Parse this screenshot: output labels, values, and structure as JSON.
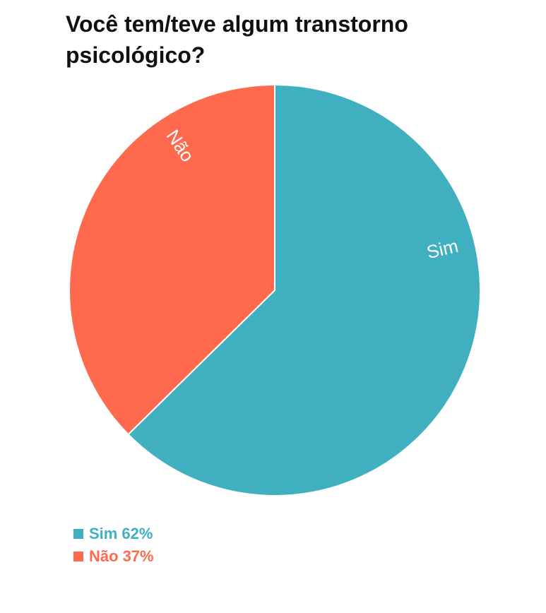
{
  "chart_data": {
    "type": "pie",
    "title": "Você tem/teve algum transtorno psicológico?",
    "slices": [
      {
        "label": "Sim",
        "value": 62,
        "value_label": "62%",
        "color": "#40B0C1"
      },
      {
        "label": "Não",
        "value": 37,
        "value_label": "37%",
        "color": "#FF6A4F"
      }
    ],
    "start_angle": "12 o'clock",
    "direction": "clockwise",
    "legend": {
      "position": "bottom-left"
    }
  }
}
